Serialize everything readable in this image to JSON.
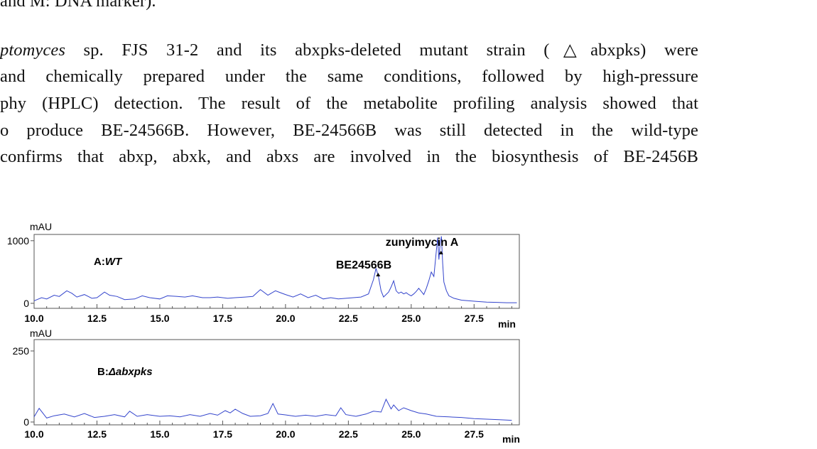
{
  "paper": {
    "caption_tail": "and M: DNA marker).",
    "para": {
      "l1_italic": "ptomyces",
      "l1_text": " sp.  FJS 31-2 and its abxpks-deleted mutant strain (△abxpks) were",
      "l2": " and chemically prepared under the same conditions, followed by high-pressure",
      "l3": "phy (HPLC) detection. The result of the metabolite profiling analysis showed that",
      "l4": "o produce BE-24566B. However, BE-24566B was still detected in the wild-type",
      "l5": "confirms that abxp, abxk, and abxs are involved in the biosynthesis of BE-2456B"
    }
  },
  "chart_data": [
    {
      "type": "line",
      "panel_label_prefix": "A:",
      "panel_label_italic": "WT",
      "y_unit": "mAU",
      "x_unit": "min",
      "xlim": [
        10.0,
        29.3
      ],
      "ylim": [
        -80,
        1100
      ],
      "x_ticks": [
        "10.0",
        "12.5",
        "15.0",
        "17.5",
        "20.0",
        "22.5",
        "25.0",
        "27.5"
      ],
      "y_ticks": [
        "0",
        "1000"
      ],
      "color": "#3344cc",
      "peaks": [
        {
          "label": "BE24566B",
          "x": 23.6
        },
        {
          "label": "zunyimycin A",
          "x": 26.1
        }
      ],
      "series": [
        {
          "x": [
            10.0,
            10.3,
            10.5,
            10.8,
            11.0,
            11.3,
            11.5,
            11.7,
            12.0,
            12.3,
            12.5,
            12.8,
            13.0,
            13.3,
            13.6,
            14.0,
            14.3,
            14.6,
            15.0,
            15.3,
            15.7,
            16.0,
            16.3,
            16.7,
            17.0,
            17.3,
            17.7,
            18.0,
            18.4,
            18.7,
            19.0,
            19.3,
            19.6,
            19.8,
            20.0,
            20.3,
            20.6,
            20.9,
            21.2,
            21.5,
            21.8,
            22.1,
            22.4,
            22.7,
            23.0,
            23.3,
            23.5,
            23.6,
            23.7,
            23.8,
            23.9,
            24.0,
            24.1,
            24.2,
            24.3,
            24.4,
            24.5,
            24.6,
            24.7,
            24.8,
            24.9,
            25.0,
            25.1,
            25.2,
            25.3,
            25.4,
            25.5,
            25.6,
            25.7,
            25.8,
            25.9,
            26.0,
            26.05,
            26.1,
            26.15,
            26.2,
            26.25,
            26.3,
            26.4,
            26.5,
            26.7,
            27.0,
            27.3,
            27.6,
            28.0,
            28.4,
            28.8,
            29.2
          ],
          "y": [
            40,
            90,
            70,
            130,
            110,
            200,
            160,
            100,
            140,
            80,
            90,
            180,
            130,
            110,
            60,
            70,
            120,
            90,
            70,
            120,
            110,
            100,
            120,
            90,
            90,
            100,
            80,
            90,
            100,
            110,
            220,
            130,
            200,
            170,
            140,
            100,
            150,
            90,
            130,
            70,
            90,
            70,
            80,
            90,
            100,
            150,
            380,
            560,
            420,
            200,
            100,
            140,
            180,
            260,
            360,
            200,
            160,
            180,
            150,
            170,
            140,
            120,
            150,
            190,
            240,
            190,
            140,
            240,
            360,
            500,
            430,
            840,
            1050,
            700,
            950,
            1070,
            640,
            340,
            200,
            120,
            80,
            50,
            40,
            30,
            20,
            15,
            10,
            10
          ]
        }
      ]
    },
    {
      "type": "line",
      "panel_label_prefix": "B:",
      "panel_label_italic": "Δabxpks",
      "y_unit": "mAU",
      "x_unit": "min",
      "xlim": [
        10.0,
        29.3
      ],
      "ylim": [
        -10,
        290
      ],
      "x_ticks": [
        "10.0",
        "12.5",
        "15.0",
        "17.5",
        "20.0",
        "22.5",
        "25.0",
        "27.5"
      ],
      "y_ticks": [
        "0",
        "250"
      ],
      "color": "#3344cc",
      "series": [
        {
          "x": [
            10.0,
            10.2,
            10.5,
            10.8,
            11.2,
            11.6,
            12.0,
            12.4,
            12.8,
            13.2,
            13.6,
            13.8,
            14.1,
            14.5,
            15.0,
            15.4,
            15.8,
            16.2,
            16.6,
            17.0,
            17.3,
            17.6,
            17.8,
            18.0,
            18.3,
            18.6,
            19.0,
            19.3,
            19.5,
            19.7,
            20.0,
            20.4,
            20.8,
            21.2,
            21.6,
            22.0,
            22.2,
            22.4,
            22.8,
            23.2,
            23.5,
            23.8,
            24.0,
            24.2,
            24.3,
            24.5,
            24.7,
            25.0,
            25.3,
            25.6,
            26.0,
            26.5,
            27.0,
            27.5,
            28.0,
            28.5,
            29.0
          ],
          "y": [
            18,
            48,
            14,
            22,
            28,
            18,
            30,
            16,
            20,
            26,
            18,
            38,
            20,
            26,
            20,
            22,
            18,
            26,
            20,
            30,
            24,
            40,
            32,
            45,
            30,
            20,
            22,
            30,
            65,
            28,
            25,
            20,
            24,
            20,
            26,
            22,
            50,
            26,
            20,
            28,
            38,
            35,
            80,
            46,
            60,
            40,
            50,
            40,
            32,
            28,
            20,
            18,
            16,
            12,
            10,
            8,
            6
          ]
        }
      ]
    }
  ]
}
